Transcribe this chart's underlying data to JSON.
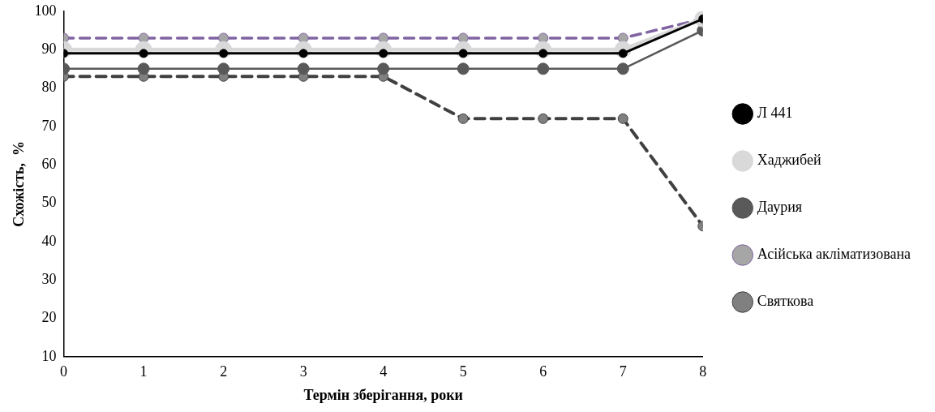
{
  "chart_data": {
    "type": "line",
    "xlabel": "Термін зберігання, роки",
    "ylabel": "Схожість,  %",
    "x": [
      0,
      1,
      2,
      3,
      4,
      5,
      6,
      7,
      8
    ],
    "xlim": [
      0,
      8
    ],
    "xticks": [
      0,
      1,
      2,
      3,
      4,
      5,
      6,
      7,
      8
    ],
    "ylim": [
      10,
      100
    ],
    "yticks": [
      10,
      20,
      30,
      40,
      50,
      60,
      70,
      80,
      90,
      100
    ],
    "grid": false,
    "legend": "right",
    "marker": "circle",
    "series": [
      {
        "name": "Л 441",
        "color": "#000000",
        "line_style": "solid",
        "values": [
          89,
          89,
          89,
          89,
          89,
          89,
          89,
          89,
          98
        ]
      },
      {
        "name": "Хаджибей",
        "color": "#d9d9d9",
        "line_style": "solid",
        "values": [
          90,
          90,
          90,
          90,
          90,
          90,
          90,
          90,
          98
        ]
      },
      {
        "name": "Даурия",
        "color": "#595959",
        "line_style": "solid",
        "values": [
          85,
          85,
          85,
          85,
          85,
          85,
          85,
          85,
          95
        ]
      },
      {
        "name": "Асійська акліматизована",
        "color": "#8064a2",
        "line_style": "dashed",
        "values": [
          93,
          93,
          93,
          93,
          93,
          93,
          93,
          93,
          98
        ]
      },
      {
        "name": "Святкова",
        "color": "#404040",
        "line_style": "dashed",
        "values": [
          83,
          83,
          83,
          83,
          83,
          72,
          72,
          72,
          44
        ]
      }
    ]
  }
}
